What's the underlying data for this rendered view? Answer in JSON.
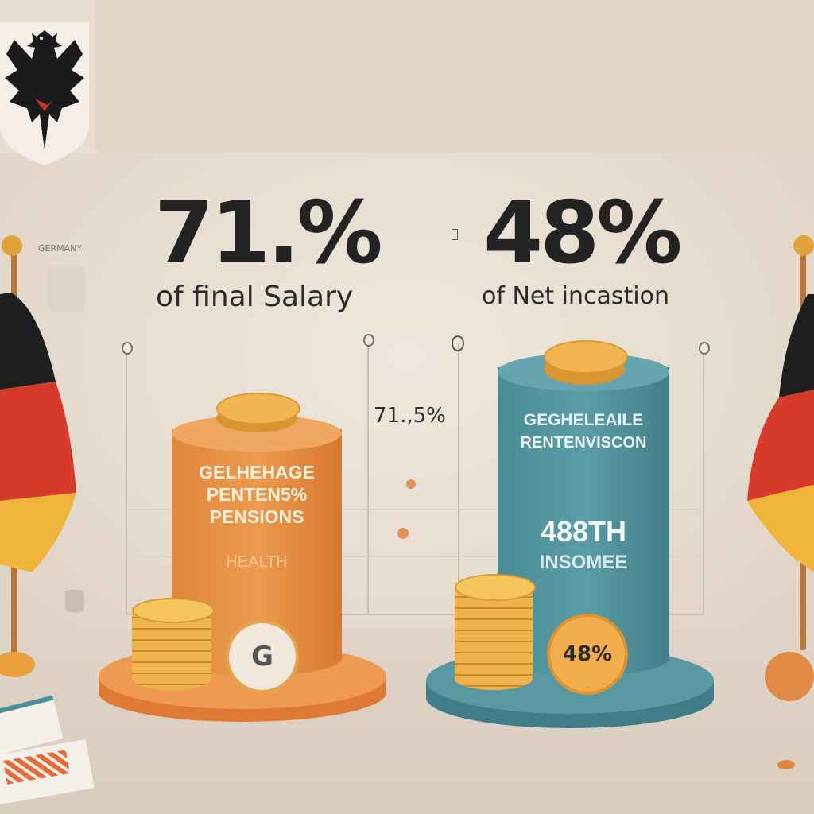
{
  "left_stat": {
    "value": "71.%",
    "caption": "of final Salary",
    "small_label": "71.,5%",
    "pillar_lines": [
      "GELHEHAGE",
      "PENTEN5%",
      "PENSIONS"
    ],
    "pillar_sub": "HEALTH",
    "badge": "G",
    "color": "#e38c3f"
  },
  "right_stat": {
    "value": "48%",
    "caption": "of Net incastion",
    "pillar_lines": [
      "GEGHELEAILE",
      "RENTENVISCON"
    ],
    "pillar_big": "488TH",
    "pillar_sub": "INSOMEE",
    "badge": "48%",
    "color": "#4e8f9a"
  },
  "side_label": "GERMANY",
  "colors": {
    "flag_black": "#1e1e1e",
    "flag_red": "#d63a2a",
    "flag_gold": "#f0b43a",
    "coin": "#efb04a"
  },
  "icons": [
    "eagle-emblem-icon",
    "german-flag-icon",
    "coin-stack-icon",
    "coin-icon"
  ]
}
